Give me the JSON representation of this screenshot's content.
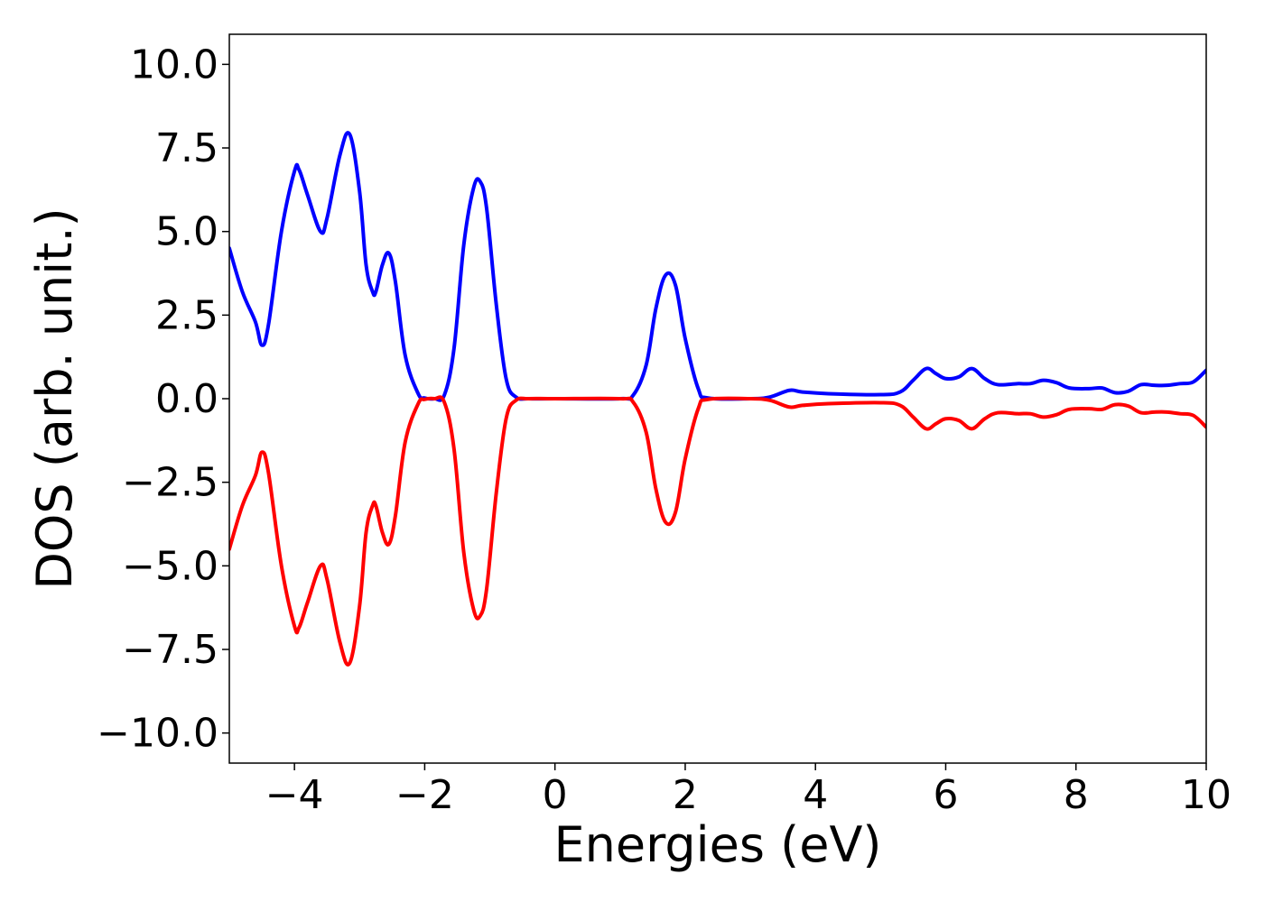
{
  "chart_data": {
    "type": "line",
    "title": "",
    "xlabel": "Energies (eV)",
    "ylabel": "DOS (arb. unit.)",
    "xlim": [
      -5,
      10
    ],
    "ylim": [
      -10.9,
      10.9
    ],
    "grid": false,
    "legend": "none",
    "x_ticks": [
      -4,
      -2,
      0,
      2,
      4,
      6,
      8,
      10
    ],
    "x_tick_labels": [
      "−4",
      "−2",
      "0",
      "2",
      "4",
      "6",
      "8",
      "10"
    ],
    "y_ticks": [
      -10,
      -7.5,
      -5,
      -2.5,
      0,
      2.5,
      5,
      7.5,
      10
    ],
    "y_tick_labels": [
      "−10.0",
      "−7.5",
      "−5.0",
      "−2.5",
      "0.0",
      "2.5",
      "5.0",
      "7.5",
      "10.0"
    ],
    "series": [
      {
        "color": "#0000ff",
        "x": [
          -5.0,
          -4.8,
          -4.6,
          -4.5,
          -4.4,
          -4.2,
          -4.0,
          -3.93,
          -3.8,
          -3.6,
          -3.5,
          -3.3,
          -3.15,
          -3.0,
          -2.9,
          -2.8,
          -2.75,
          -2.65,
          -2.55,
          -2.45,
          -2.3,
          -2.1,
          -2.0,
          -1.85,
          -1.7,
          -1.55,
          -1.4,
          -1.25,
          -1.15,
          -1.05,
          -0.9,
          -0.75,
          -0.6,
          -0.4,
          0.0,
          1.0,
          1.2,
          1.4,
          1.55,
          1.7,
          1.85,
          2.0,
          2.2,
          2.35,
          3.0,
          3.3,
          3.6,
          3.8,
          4.2,
          5.0,
          5.3,
          5.5,
          5.7,
          5.85,
          6.0,
          6.2,
          6.4,
          6.6,
          6.8,
          7.1,
          7.3,
          7.5,
          7.7,
          7.9,
          8.2,
          8.4,
          8.6,
          8.8,
          9.0,
          9.2,
          9.4,
          9.6,
          9.8,
          10.0
        ],
        "values": [
          4.5,
          3.2,
          2.3,
          1.6,
          2.2,
          5.0,
          6.8,
          6.85,
          6.1,
          5.0,
          5.4,
          7.3,
          7.9,
          6.2,
          4.0,
          3.2,
          3.2,
          4.0,
          4.35,
          3.5,
          1.3,
          0.15,
          0.02,
          0.0,
          0.1,
          1.5,
          4.6,
          6.3,
          6.5,
          5.7,
          2.8,
          0.6,
          0.05,
          0.0,
          0.0,
          0.0,
          0.1,
          1.0,
          2.7,
          3.7,
          3.4,
          1.8,
          0.3,
          0.02,
          0.0,
          0.05,
          0.25,
          0.2,
          0.15,
          0.12,
          0.2,
          0.55,
          0.9,
          0.75,
          0.6,
          0.65,
          0.9,
          0.6,
          0.42,
          0.45,
          0.45,
          0.55,
          0.48,
          0.32,
          0.3,
          0.32,
          0.18,
          0.22,
          0.42,
          0.4,
          0.4,
          0.45,
          0.5,
          0.85
        ]
      },
      {
        "color": "#ff0000",
        "x": [
          -5.0,
          -4.8,
          -4.6,
          -4.5,
          -4.4,
          -4.2,
          -4.0,
          -3.93,
          -3.8,
          -3.6,
          -3.5,
          -3.3,
          -3.15,
          -3.0,
          -2.9,
          -2.8,
          -2.75,
          -2.65,
          -2.55,
          -2.45,
          -2.3,
          -2.1,
          -2.0,
          -1.85,
          -1.7,
          -1.55,
          -1.4,
          -1.25,
          -1.15,
          -1.05,
          -0.9,
          -0.75,
          -0.6,
          -0.4,
          0.0,
          1.0,
          1.2,
          1.4,
          1.55,
          1.7,
          1.85,
          2.0,
          2.2,
          2.35,
          3.0,
          3.3,
          3.6,
          3.8,
          4.2,
          5.0,
          5.3,
          5.5,
          5.7,
          5.85,
          6.0,
          6.2,
          6.4,
          6.6,
          6.8,
          7.1,
          7.3,
          7.5,
          7.7,
          7.9,
          8.2,
          8.4,
          8.6,
          8.8,
          9.0,
          9.2,
          9.4,
          9.6,
          9.8,
          10.0
        ],
        "values": [
          -4.5,
          -3.2,
          -2.3,
          -1.6,
          -2.2,
          -5.0,
          -6.8,
          -6.85,
          -6.1,
          -5.0,
          -5.4,
          -7.3,
          -7.9,
          -6.2,
          -4.0,
          -3.2,
          -3.2,
          -4.0,
          -4.35,
          -3.5,
          -1.3,
          -0.15,
          -0.02,
          0.0,
          -0.1,
          -1.5,
          -4.6,
          -6.3,
          -6.5,
          -5.7,
          -2.8,
          -0.6,
          -0.05,
          0.0,
          0.0,
          0.0,
          -0.1,
          -1.0,
          -2.7,
          -3.7,
          -3.4,
          -1.8,
          -0.3,
          -0.02,
          0.0,
          -0.05,
          -0.25,
          -0.2,
          -0.15,
          -0.12,
          -0.2,
          -0.55,
          -0.9,
          -0.75,
          -0.6,
          -0.65,
          -0.9,
          -0.6,
          -0.42,
          -0.45,
          -0.45,
          -0.55,
          -0.48,
          -0.32,
          -0.3,
          -0.32,
          -0.18,
          -0.22,
          -0.42,
          -0.4,
          -0.4,
          -0.45,
          -0.5,
          -0.85
        ]
      }
    ]
  }
}
